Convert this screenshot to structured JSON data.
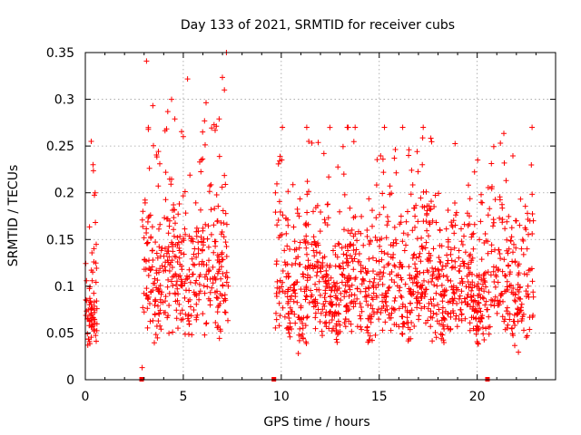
{
  "chart_data": {
    "type": "scatter",
    "title": "Day 133 of 2021, SRMTID for receiver cubs",
    "xlabel": "GPS time / hours",
    "ylabel": "SRMTID / TECUs",
    "xlim": [
      0,
      24
    ],
    "ylim": [
      0,
      0.35
    ],
    "xticks": [
      0,
      5,
      10,
      15,
      20
    ],
    "yticks": [
      0,
      0.05,
      0.1,
      0.15,
      0.2,
      0.25,
      0.3,
      0.35
    ],
    "xtick_labels": [
      "0",
      "5",
      "10",
      "15",
      "20"
    ],
    "ytick_labels": [
      "0",
      "0.05",
      "0.1",
      "0.15",
      "0.2",
      "0.25",
      "0.3",
      "0.35"
    ],
    "grid": true,
    "marker": "+",
    "series_color": "#ff0000",
    "gap_markers_x": [
      2.85,
      9.6,
      20.5
    ],
    "clusters": [
      {
        "x_start": 0.0,
        "x_end": 0.6,
        "y_low": 0.03,
        "y_high": 0.255,
        "typical": 0.068,
        "count": 70
      },
      {
        "x_start": 2.9,
        "x_end": 7.3,
        "y_low": 0.013,
        "y_high": 0.35,
        "typical": 0.11,
        "count": 420
      },
      {
        "x_start": 9.7,
        "x_end": 22.9,
        "y_low": 0.028,
        "y_high": 0.27,
        "typical": 0.095,
        "count": 1250
      }
    ],
    "notable_points": [
      {
        "x": 0.1,
        "y": 0.065
      },
      {
        "x": 0.3,
        "y": 0.255
      },
      {
        "x": 0.5,
        "y": 0.2
      },
      {
        "x": 2.9,
        "y": 0.013
      },
      {
        "x": 4.4,
        "y": 0.3
      },
      {
        "x": 5.0,
        "y": 0.26
      },
      {
        "x": 7.2,
        "y": 0.35
      },
      {
        "x": 7.1,
        "y": 0.31
      },
      {
        "x": 9.7,
        "y": 0.2
      },
      {
        "x": 11.3,
        "y": 0.27
      },
      {
        "x": 11.4,
        "y": 0.255
      },
      {
        "x": 16.2,
        "y": 0.27
      },
      {
        "x": 16.5,
        "y": 0.24
      },
      {
        "x": 17.2,
        "y": 0.23
      },
      {
        "x": 20.2,
        "y": 0.198
      },
      {
        "x": 22.0,
        "y": 0.17
      }
    ]
  }
}
